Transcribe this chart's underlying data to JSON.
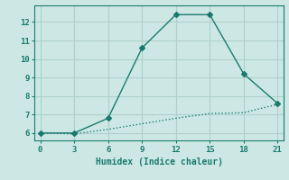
{
  "xlabel": "Humidex (Indice chaleur)",
  "line1_x": [
    0,
    3,
    6,
    9,
    12,
    15,
    18,
    21
  ],
  "line1_y": [
    6.0,
    6.0,
    6.8,
    10.6,
    12.4,
    12.4,
    9.2,
    7.6
  ],
  "line2_x": [
    0,
    3,
    6,
    9,
    12,
    15,
    18,
    21
  ],
  "line2_y": [
    6.0,
    5.95,
    6.2,
    6.5,
    6.8,
    7.05,
    7.1,
    7.55
  ],
  "line_color": "#1a7a6e",
  "bg_color": "#cde8e4",
  "grid_color": "#aed0cb",
  "xlim": [
    -0.5,
    21.5
  ],
  "ylim": [
    5.6,
    12.9
  ],
  "xticks": [
    0,
    3,
    6,
    9,
    12,
    15,
    18,
    21
  ],
  "yticks": [
    6,
    7,
    8,
    9,
    10,
    11,
    12
  ],
  "marker": "D",
  "marker_size": 3,
  "linewidth": 1.0
}
